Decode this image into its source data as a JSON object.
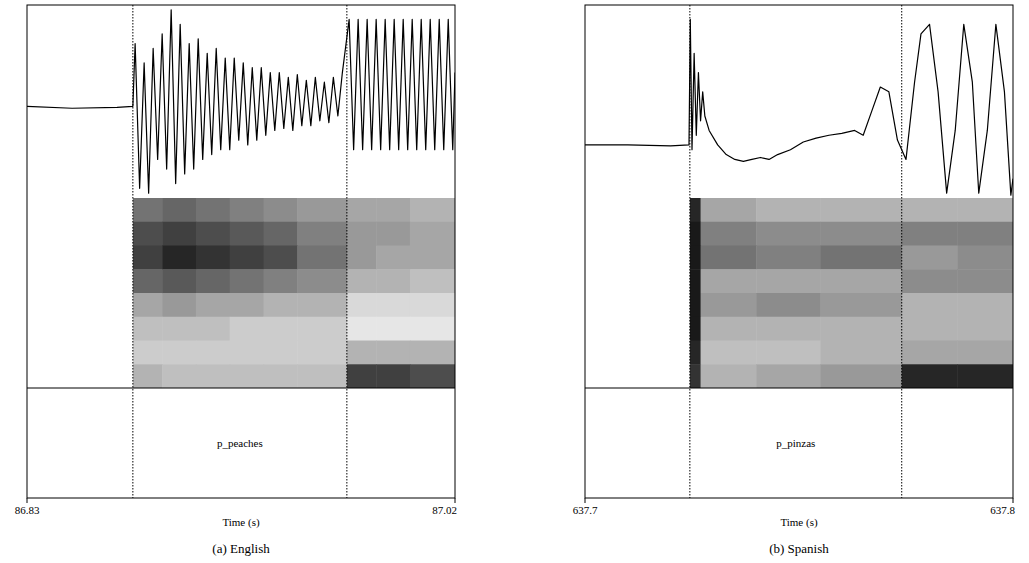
{
  "chart_data": [
    {
      "type": "waveform",
      "title": "(a) English",
      "xlabel": "Time (s)",
      "xlim": [
        86.83,
        87.02
      ],
      "xticks": [
        86.83,
        87.02
      ],
      "tick_labels": "x",
      "waveform": {
        "ylim": [
          -1,
          1
        ],
        "x": [
          86.83,
          86.85,
          86.87,
          86.877,
          86.878,
          86.88,
          86.882,
          86.884,
          86.886,
          86.888,
          86.89,
          86.892,
          86.894,
          86.896,
          86.898,
          86.9,
          86.902,
          86.904,
          86.906,
          86.908,
          86.91,
          86.912,
          86.914,
          86.916,
          86.918,
          86.92,
          86.922,
          86.924,
          86.926,
          86.928,
          86.93,
          86.932,
          86.934,
          86.936,
          86.938,
          86.94,
          86.942,
          86.944,
          86.946,
          86.948,
          86.95,
          86.952,
          86.954,
          86.956,
          86.958,
          86.96,
          86.962,
          86.964,
          86.966,
          86.968,
          86.97,
          86.973,
          86.975,
          86.977,
          86.979,
          86.981,
          86.983,
          86.985,
          86.987,
          86.989,
          86.991,
          86.993,
          86.995,
          86.997,
          86.999,
          87.001,
          87.003,
          87.005,
          87.007,
          87.009,
          87.011,
          87.013,
          87.015,
          87.017,
          87.019,
          87.02
        ],
        "values": [
          -0.05,
          -0.07,
          -0.06,
          -0.05,
          0.6,
          -0.9,
          0.4,
          -0.95,
          0.55,
          -0.6,
          0.7,
          -0.7,
          0.95,
          -0.85,
          0.8,
          -0.75,
          0.6,
          -0.7,
          0.65,
          -0.6,
          0.5,
          -0.55,
          0.55,
          -0.5,
          0.45,
          -0.5,
          0.45,
          -0.4,
          0.4,
          -0.45,
          0.35,
          -0.4,
          0.35,
          -0.35,
          0.3,
          -0.3,
          0.3,
          -0.28,
          0.25,
          -0.3,
          0.28,
          -0.25,
          0.22,
          -0.25,
          0.25,
          -0.2,
          0.2,
          -0.22,
          0.25,
          -0.15,
          0.3,
          0.85,
          -0.5,
          0.85,
          -0.5,
          0.85,
          -0.5,
          0.85,
          -0.5,
          0.85,
          -0.5,
          0.85,
          -0.5,
          0.85,
          -0.5,
          0.85,
          -0.5,
          0.85,
          -0.5,
          0.85,
          -0.5,
          0.85,
          -0.5,
          0.85,
          -0.5,
          0.3
        ]
      },
      "spectrogram": {
        "x": [
          86.83,
          86.877,
          86.89,
          86.905,
          86.92,
          86.935,
          86.95,
          86.972,
          86.985,
          87.0,
          87.02
        ],
        "cells": [
          [
            0,
            0.55,
            0.6,
            0.55,
            0.5,
            0.45,
            0.4,
            0.35,
            0.35,
            0.3
          ],
          [
            0,
            0.7,
            0.75,
            0.7,
            0.65,
            0.6,
            0.5,
            0.4,
            0.4,
            0.35
          ],
          [
            0,
            0.75,
            0.85,
            0.8,
            0.75,
            0.7,
            0.55,
            0.4,
            0.35,
            0.35
          ],
          [
            0,
            0.6,
            0.65,
            0.6,
            0.55,
            0.5,
            0.45,
            0.3,
            0.3,
            0.25
          ],
          [
            0,
            0.35,
            0.4,
            0.35,
            0.35,
            0.3,
            0.3,
            0.15,
            0.15,
            0.15
          ],
          [
            0,
            0.25,
            0.25,
            0.25,
            0.2,
            0.2,
            0.2,
            0.1,
            0.1,
            0.1
          ],
          [
            0,
            0.2,
            0.2,
            0.2,
            0.2,
            0.2,
            0.2,
            0.3,
            0.3,
            0.3
          ],
          [
            0,
            0.3,
            0.25,
            0.25,
            0.25,
            0.25,
            0.25,
            0.75,
            0.75,
            0.7
          ]
        ]
      },
      "tier": {
        "boundaries": [
          86.877,
          86.972
        ],
        "label": "p_peaches"
      }
    },
    {
      "type": "waveform",
      "title": "(b) Spanish",
      "xlabel": "Time (s)",
      "xlim": [
        637.7,
        637.8
      ],
      "xticks": [
        637.7,
        637.8
      ],
      "tick_labels": "x",
      "waveform": {
        "ylim": [
          -1,
          1
        ],
        "x": [
          637.7,
          637.71,
          637.72,
          637.7243,
          637.7246,
          637.725,
          637.7255,
          637.726,
          637.7265,
          637.727,
          637.7275,
          637.728,
          637.729,
          637.731,
          637.733,
          637.735,
          637.737,
          637.739,
          637.741,
          637.743,
          637.745,
          637.748,
          637.751,
          637.754,
          637.757,
          637.76,
          637.763,
          637.765,
          637.767,
          637.769,
          637.771,
          637.773,
          637.775,
          637.777,
          637.7785,
          637.7805,
          637.7825,
          637.7845,
          637.7865,
          637.7885,
          637.7905,
          637.792,
          637.794,
          637.796,
          637.798,
          637.7995,
          637.8
        ],
        "values": [
          -0.45,
          -0.45,
          -0.46,
          -0.45,
          0.85,
          -0.5,
          0.5,
          -0.35,
          0.3,
          -0.2,
          0.1,
          -0.15,
          -0.3,
          -0.45,
          -0.55,
          -0.6,
          -0.62,
          -0.6,
          -0.58,
          -0.6,
          -0.55,
          -0.5,
          -0.42,
          -0.38,
          -0.35,
          -0.33,
          -0.3,
          -0.35,
          -0.1,
          0.15,
          0.1,
          -0.4,
          -0.6,
          0.2,
          0.7,
          0.8,
          0.1,
          -0.95,
          -0.3,
          0.8,
          0.2,
          -0.95,
          -0.3,
          0.8,
          0.1,
          -0.97,
          -0.8
        ]
      },
      "spectrogram": {
        "x": [
          637.7,
          637.7245,
          637.727,
          637.74,
          637.755,
          637.774,
          637.787,
          637.8
        ],
        "cells": [
          [
            0,
            0.85,
            0.35,
            0.3,
            0.3,
            0.3,
            0.3
          ],
          [
            0,
            0.9,
            0.5,
            0.45,
            0.45,
            0.5,
            0.5
          ],
          [
            0,
            0.9,
            0.55,
            0.5,
            0.55,
            0.4,
            0.45
          ],
          [
            0,
            0.9,
            0.35,
            0.35,
            0.35,
            0.45,
            0.45
          ],
          [
            0,
            0.9,
            0.4,
            0.45,
            0.4,
            0.3,
            0.3
          ],
          [
            0,
            0.9,
            0.3,
            0.3,
            0.3,
            0.3,
            0.3
          ],
          [
            0,
            0.85,
            0.25,
            0.25,
            0.3,
            0.35,
            0.35
          ],
          [
            0,
            0.8,
            0.3,
            0.35,
            0.4,
            0.85,
            0.85
          ]
        ]
      },
      "tier": {
        "boundaries": [
          637.7245,
          637.774
        ],
        "label": "p_pinzas"
      }
    }
  ]
}
